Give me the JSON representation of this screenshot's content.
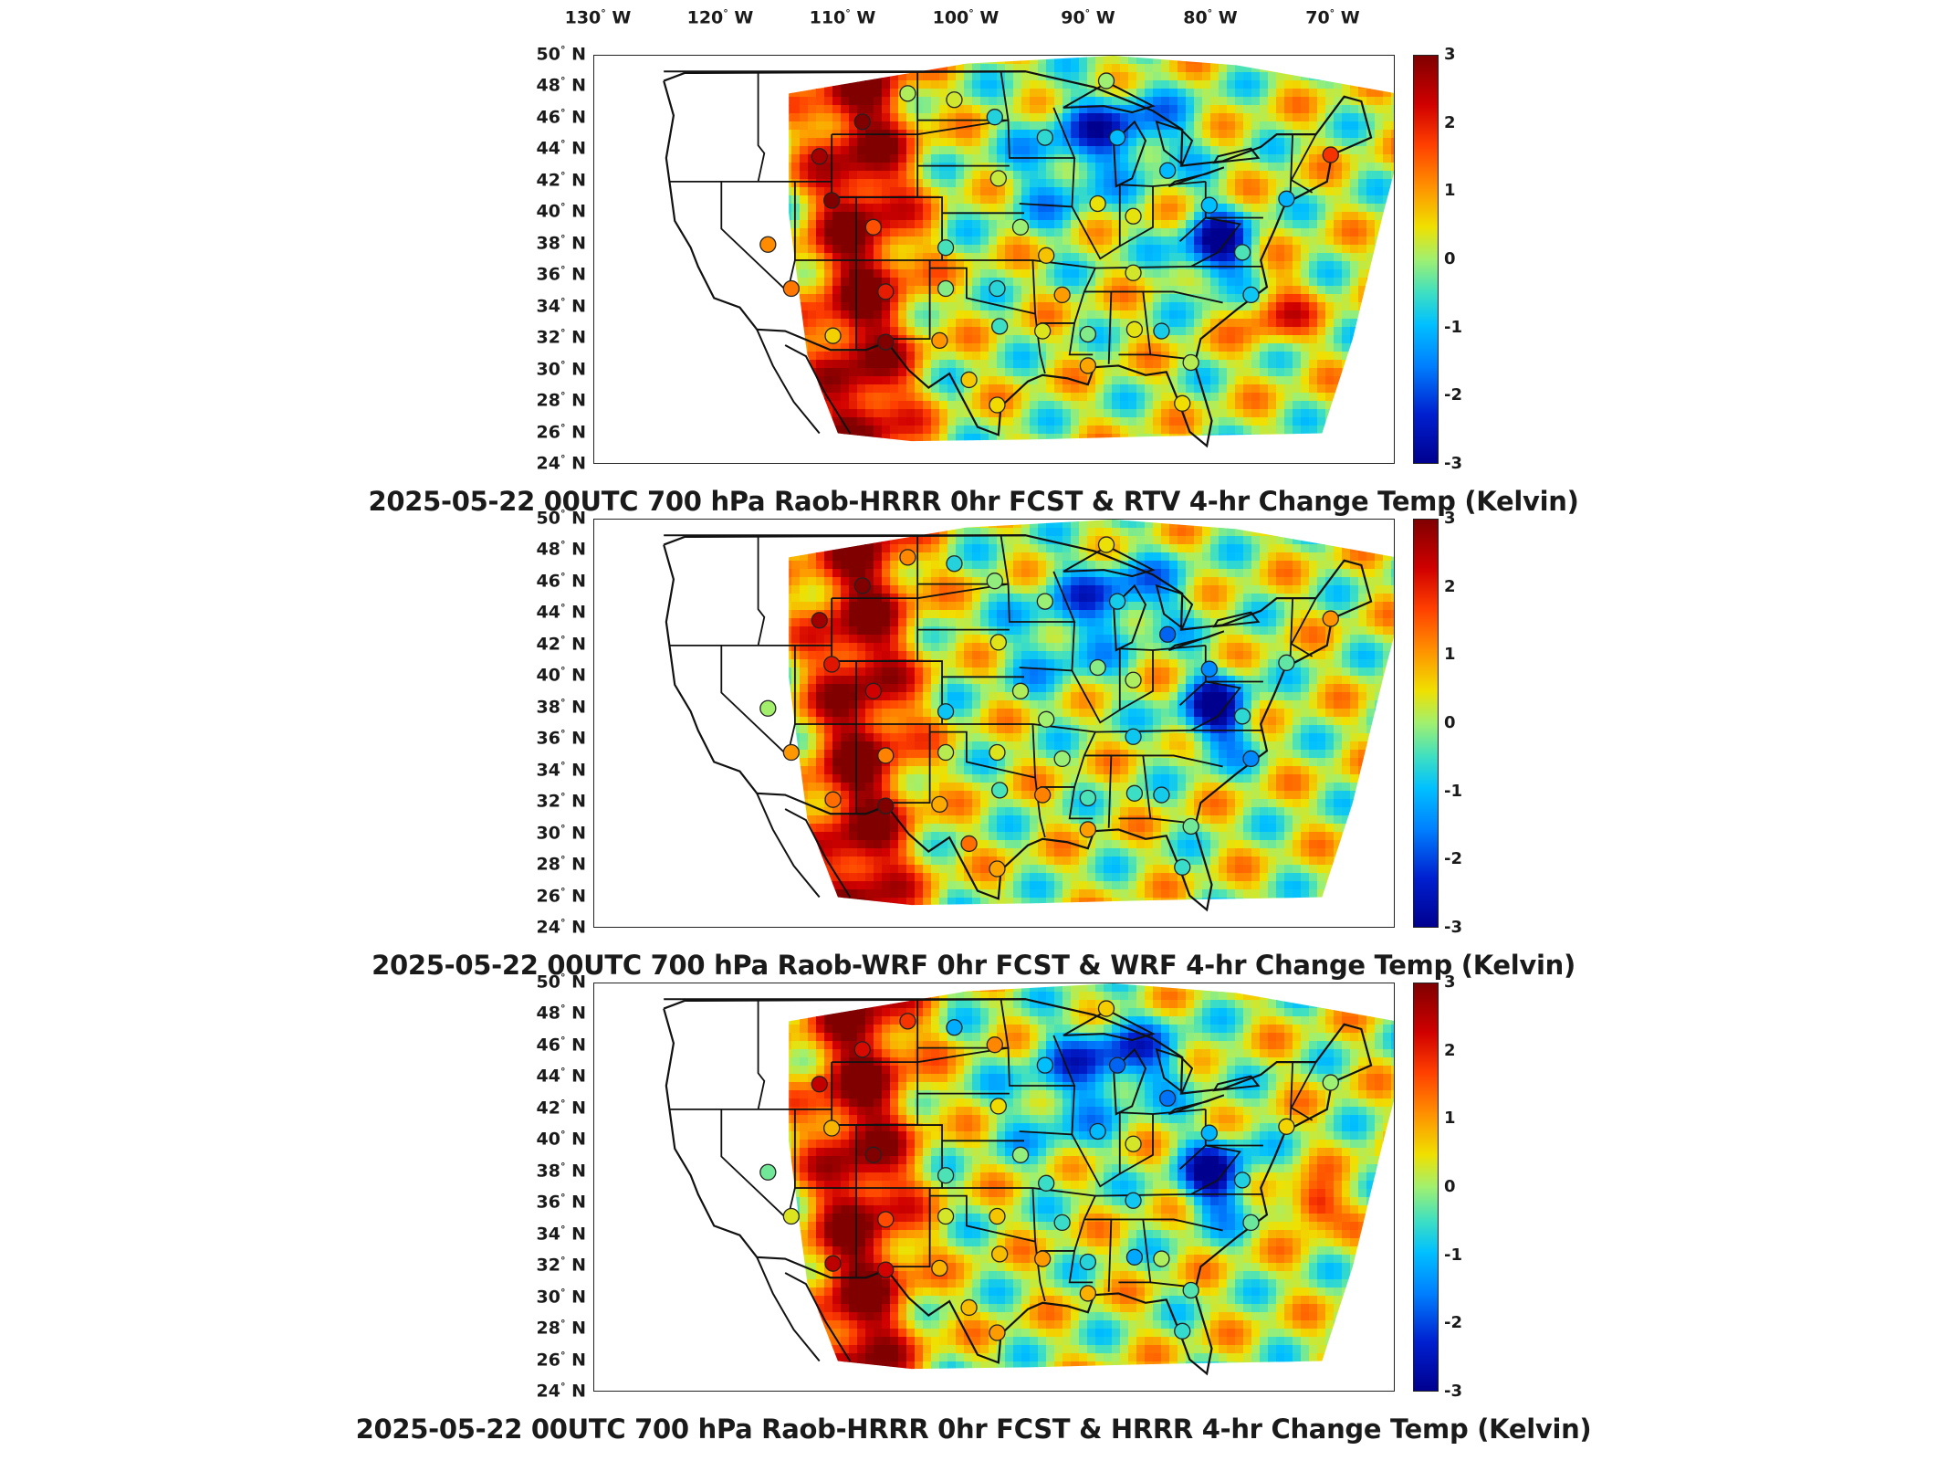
{
  "longitude_labels": [
    {
      "deg": "130",
      "hem": "W"
    },
    {
      "deg": "120",
      "hem": "W"
    },
    {
      "deg": "110",
      "hem": "W"
    },
    {
      "deg": "100",
      "hem": "W"
    },
    {
      "deg": "90",
      "hem": "W"
    },
    {
      "deg": "80",
      "hem": "W"
    },
    {
      "deg": "70",
      "hem": "W"
    }
  ],
  "latitude_labels": [
    {
      "deg": "50",
      "hem": "N"
    },
    {
      "deg": "48",
      "hem": "N"
    },
    {
      "deg": "46",
      "hem": "N"
    },
    {
      "deg": "44",
      "hem": "N"
    },
    {
      "deg": "42",
      "hem": "N"
    },
    {
      "deg": "40",
      "hem": "N"
    },
    {
      "deg": "38",
      "hem": "N"
    },
    {
      "deg": "36",
      "hem": "N"
    },
    {
      "deg": "34",
      "hem": "N"
    },
    {
      "deg": "32",
      "hem": "N"
    },
    {
      "deg": "30",
      "hem": "N"
    },
    {
      "deg": "28",
      "hem": "N"
    },
    {
      "deg": "26",
      "hem": "N"
    },
    {
      "deg": "24",
      "hem": "N"
    }
  ],
  "colorbar": {
    "ticks": [
      "3",
      "2",
      "1",
      "0",
      "-1",
      "-2",
      "-3"
    ],
    "min": -3,
    "max": 3,
    "colormap": "jet"
  },
  "panels": [
    {
      "title": "2025-05-22 00UTC 700 hPa Raob-HRRR 0hr FCST & RTV 4-hr Change Temp (Kelvin)"
    },
    {
      "title": "2025-05-22 00UTC 700 hPa Raob-WRF 0hr FCST & WRF 4-hr Change Temp (Kelvin)"
    },
    {
      "title": "2025-05-22 00UTC 700 hPa Raob-HRRR 0hr FCST & HRRR 4-hr Change Temp (Kelvin)"
    }
  ],
  "stations": [
    {
      "lon": -104.8,
      "lat": 47.6
    },
    {
      "lon": -108.5,
      "lat": 45.8
    },
    {
      "lon": -101.0,
      "lat": 47.2
    },
    {
      "lon": -97.7,
      "lat": 46.1
    },
    {
      "lon": -93.6,
      "lat": 44.8
    },
    {
      "lon": -87.7,
      "lat": 44.8
    },
    {
      "lon": -83.6,
      "lat": 42.7
    },
    {
      "lon": -97.4,
      "lat": 42.2
    },
    {
      "lon": -89.3,
      "lat": 40.6
    },
    {
      "lon": -86.4,
      "lat": 39.8
    },
    {
      "lon": -101.7,
      "lat": 37.8
    },
    {
      "lon": -95.6,
      "lat": 39.1
    },
    {
      "lon": -93.5,
      "lat": 37.3
    },
    {
      "lon": -86.4,
      "lat": 36.2
    },
    {
      "lon": -101.7,
      "lat": 35.2
    },
    {
      "lon": -97.5,
      "lat": 35.2
    },
    {
      "lon": -92.2,
      "lat": 34.8
    },
    {
      "lon": -106.6,
      "lat": 35.0
    },
    {
      "lon": -110.9,
      "lat": 32.2
    },
    {
      "lon": -106.6,
      "lat": 31.8
    },
    {
      "lon": -102.2,
      "lat": 31.9
    },
    {
      "lon": -97.3,
      "lat": 32.8
    },
    {
      "lon": -93.8,
      "lat": 32.5
    },
    {
      "lon": -90.1,
      "lat": 32.3
    },
    {
      "lon": -86.3,
      "lat": 32.6
    },
    {
      "lon": -84.1,
      "lat": 32.5
    },
    {
      "lon": -90.1,
      "lat": 30.3
    },
    {
      "lon": -81.7,
      "lat": 30.5
    },
    {
      "lon": -82.4,
      "lat": 27.9
    },
    {
      "lon": -97.5,
      "lat": 27.8
    },
    {
      "lon": -99.8,
      "lat": 29.4
    },
    {
      "lon": -77.5,
      "lat": 37.5
    },
    {
      "lon": -76.8,
      "lat": 34.8
    },
    {
      "lon": -73.9,
      "lat": 40.9
    },
    {
      "lon": -70.3,
      "lat": 43.7
    },
    {
      "lon": -80.2,
      "lat": 40.5
    },
    {
      "lon": -88.6,
      "lat": 48.4
    },
    {
      "lon": -112.0,
      "lat": 43.6
    },
    {
      "lon": -111.0,
      "lat": 40.8
    },
    {
      "lon": -116.2,
      "lat": 38.0
    },
    {
      "lon": -107.6,
      "lat": 39.1
    },
    {
      "lon": -114.3,
      "lat": 35.2
    }
  ]
}
